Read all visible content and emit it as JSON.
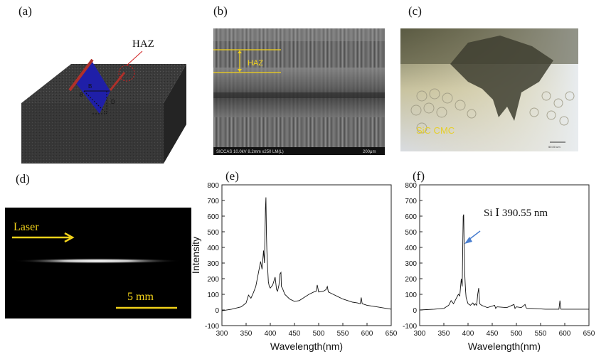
{
  "panels": {
    "a": {
      "label": "(a)",
      "haz_label": "HAZ",
      "b_label": "B",
      "theta_label": "θ",
      "d_label": "D"
    },
    "b": {
      "label": "(b)",
      "haz_label": "HAZ",
      "footer_left": "SICCAS 10.0kV 8.2mm x250 LM(L)",
      "footer_right": "200μm"
    },
    "c": {
      "label": "(c)",
      "material_label": "SiC CMC",
      "scalebar_text": "50.00 um"
    },
    "d": {
      "label": "(d)",
      "laser_label": "Laser",
      "scale_label": "5 mm"
    },
    "e": {
      "label": "(e)"
    },
    "f": {
      "label": "(f)",
      "annotation": "Si Ⅰ 390.55 nm"
    }
  },
  "colors": {
    "yellow": "#f2d21a",
    "block_blue": "#1f1fa8",
    "haz_red": "#b0302a",
    "arrow_blue": "#4a7fd0"
  },
  "chart_data": [
    {
      "id": "e",
      "type": "line",
      "xlabel": "Wavelength(nm)",
      "ylabel": "Intensity",
      "xlim": [
        300,
        650
      ],
      "ylim": [
        -100,
        800
      ],
      "xticks": [
        300,
        350,
        400,
        450,
        500,
        550,
        600,
        650
      ],
      "yticks": [
        -100,
        0,
        100,
        200,
        300,
        400,
        500,
        600,
        700,
        800
      ],
      "series": [
        {
          "x": [
            300,
            320,
            340,
            350,
            355,
            360,
            365,
            370,
            375,
            380,
            383,
            386,
            388,
            390,
            391,
            392,
            393,
            394,
            395,
            396,
            398,
            400,
            405,
            410,
            413,
            415,
            418,
            420,
            422,
            423,
            425,
            430,
            440,
            450,
            460,
            470,
            480,
            490,
            495,
            497,
            500,
            510,
            515,
            518,
            520,
            530,
            540,
            550,
            560,
            570,
            580,
            586,
            588,
            590,
            595,
            600,
            620,
            640,
            650
          ],
          "y": [
            -5,
            5,
            20,
            45,
            95,
            75,
            110,
            150,
            230,
            310,
            260,
            380,
            300,
            650,
            720,
            480,
            380,
            300,
            240,
            180,
            150,
            140,
            160,
            210,
            130,
            120,
            160,
            230,
            240,
            150,
            140,
            100,
            70,
            55,
            60,
            80,
            100,
            115,
            120,
            160,
            115,
            120,
            130,
            150,
            115,
            100,
            85,
            70,
            60,
            50,
            45,
            40,
            80,
            40,
            35,
            30,
            20,
            10,
            5
          ]
        }
      ]
    },
    {
      "id": "f",
      "type": "line",
      "xlabel": "Wavelength(nm)",
      "ylabel": "",
      "xlim": [
        300,
        650
      ],
      "ylim": [
        -100,
        800
      ],
      "xticks": [
        300,
        350,
        400,
        450,
        500,
        550,
        600,
        650
      ],
      "yticks": [
        -100,
        0,
        100,
        200,
        300,
        400,
        500,
        600,
        700,
        800
      ],
      "series": [
        {
          "x": [
            300,
            330,
            350,
            355,
            360,
            365,
            370,
            375,
            380,
            383,
            386,
            388,
            390,
            391,
            392,
            393,
            394,
            395,
            396,
            398,
            400,
            405,
            410,
            413,
            415,
            418,
            420,
            422,
            424,
            428,
            440,
            455,
            457,
            460,
            480,
            495,
            497,
            500,
            510,
            518,
            520,
            522,
            530,
            560,
            588,
            590,
            592,
            600,
            620,
            650
          ],
          "y": [
            0,
            5,
            10,
            20,
            30,
            60,
            40,
            70,
            100,
            90,
            200,
            150,
            600,
            610,
            400,
            250,
            180,
            120,
            80,
            60,
            40,
            30,
            45,
            30,
            40,
            30,
            100,
            140,
            40,
            30,
            15,
            30,
            10,
            20,
            15,
            35,
            10,
            20,
            15,
            35,
            15,
            10,
            10,
            5,
            5,
            60,
            5,
            5,
            5,
            5
          ]
        }
      ]
    }
  ]
}
